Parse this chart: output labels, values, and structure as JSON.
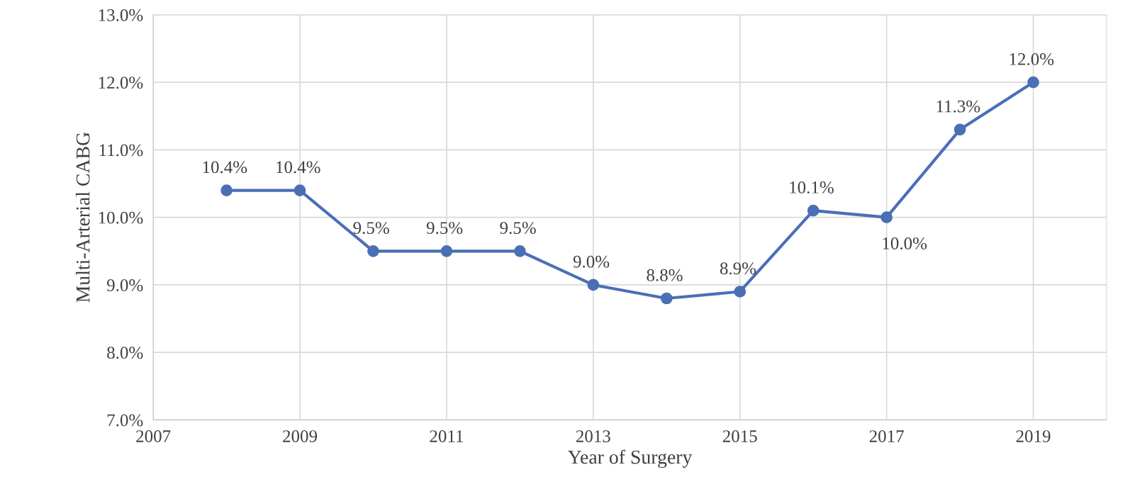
{
  "chart_data": {
    "type": "line",
    "xlabel": "Year of Surgery",
    "ylabel": "Multi-Arterial CABG",
    "x": [
      2008,
      2009,
      2010,
      2011,
      2012,
      2013,
      2014,
      2015,
      2016,
      2017,
      2018,
      2019
    ],
    "series": [
      {
        "color": "#4a6fb5",
        "values": [
          10.4,
          10.4,
          9.5,
          9.5,
          9.5,
          9.0,
          8.8,
          8.9,
          10.1,
          10.0,
          11.3,
          12.0
        ]
      }
    ],
    "value_labels": [
      "10.4%",
      "10.4%",
      "9.5%",
      "9.5%",
      "9.5%",
      "9.0%",
      "8.8%",
      "8.9%",
      "10.1%",
      "10.0%",
      "11.3%",
      "12.0%"
    ],
    "xlim": [
      2007,
      2020
    ],
    "xticks": [
      2007,
      2009,
      2011,
      2013,
      2015,
      2017,
      2019
    ],
    "ylim": [
      7,
      13
    ],
    "yticks": [
      {
        "value": 7,
        "label": "7.0%"
      },
      {
        "value": 8,
        "label": "8.0%"
      },
      {
        "value": 9,
        "label": "9.0%"
      },
      {
        "value": 10,
        "label": "10.0%"
      },
      {
        "value": 11,
        "label": "11.0%"
      },
      {
        "value": 12,
        "label": "12.0%"
      },
      {
        "value": 13,
        "label": "13.0%"
      }
    ],
    "grid": true,
    "marker": "circle",
    "line_style": "solid"
  }
}
